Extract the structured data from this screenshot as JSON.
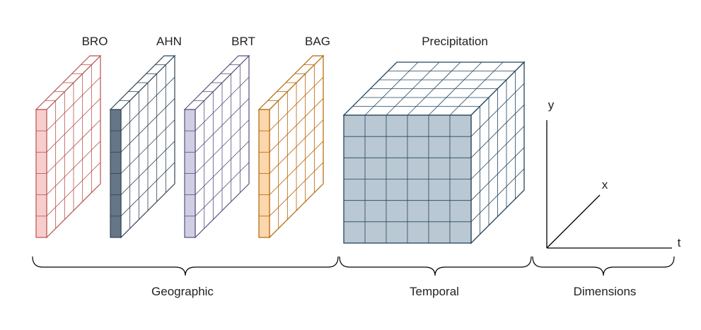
{
  "layers": [
    {
      "label": "BRO",
      "front_fill": "#f8cecc",
      "stroke": "#b85450"
    },
    {
      "label": "AHN",
      "front_fill": "#647687",
      "stroke": "#314354"
    },
    {
      "label": "BRT",
      "front_fill": "#d0cee2",
      "stroke": "#56517e"
    },
    {
      "label": "BAG",
      "front_fill": "#fad7ac",
      "stroke": "#b46504"
    }
  ],
  "cube": {
    "label": "Precipitation",
    "front_fill": "#bac8d3",
    "stroke": "#23445d"
  },
  "axes": {
    "y": "y",
    "x": "x",
    "t": "t"
  },
  "groups": {
    "geographic": "Geographic",
    "temporal": "Temporal",
    "dimensions": "Dimensions"
  }
}
